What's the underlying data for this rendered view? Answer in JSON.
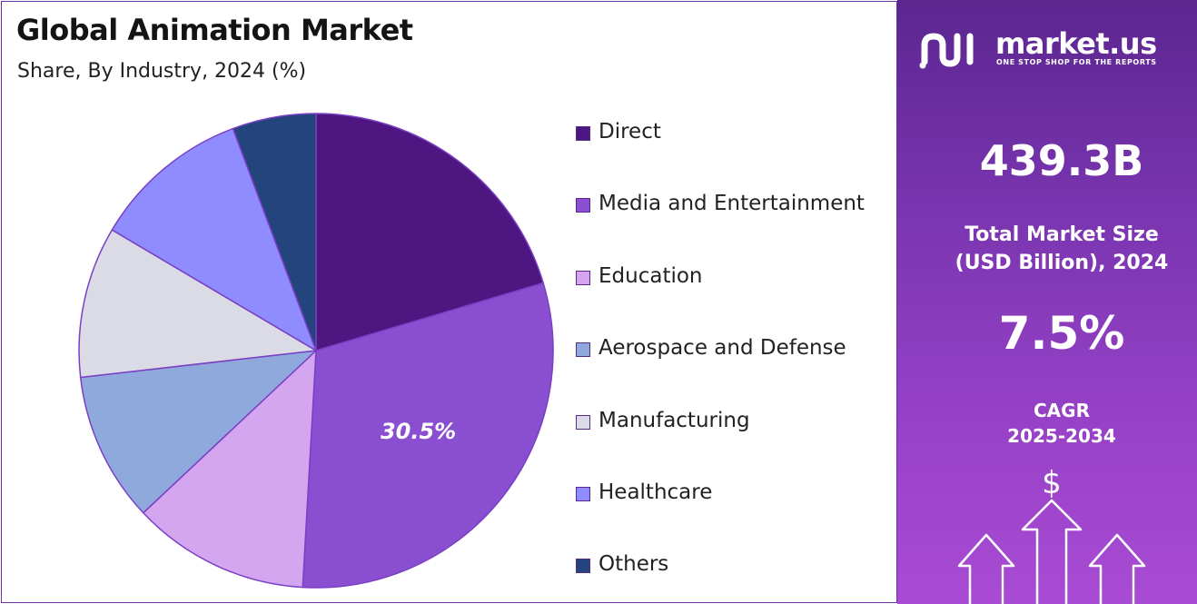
{
  "title": "Global Animation Market",
  "subtitle": "Share, By Industry, 2024 (%)",
  "chart_data": {
    "type": "pie",
    "categories": [
      "Direct",
      "Media and Entertainment",
      "Education",
      "Aerospace and Defense",
      "Manufacturing",
      "Healthcare",
      "Others"
    ],
    "values": [
      20.4,
      30.5,
      12.1,
      10.2,
      10.3,
      10.8,
      5.7
    ],
    "colors": [
      "#4d1680",
      "#8a4fd0",
      "#d3a6ef",
      "#8fa9dc",
      "#dadbe5",
      "#8e8cff",
      "#24447e"
    ],
    "data_labels": [
      {
        "category": "Media and Entertainment",
        "text": "30.5%"
      }
    ],
    "legend_position": "right",
    "start_angle_deg": 0,
    "direction": "clockwise"
  },
  "sidebar": {
    "brand_name": "market.us",
    "brand_tagline": "ONE STOP SHOP FOR THE REPORTS",
    "market_size_value": "439.3B",
    "market_size_label_line1": "Total Market Size",
    "market_size_label_line2": "(USD Billion), 2024",
    "cagr_value": "7.5%",
    "cagr_label_line1": "CAGR",
    "cagr_label_line2": "2025-2034",
    "dollar_symbol": "$",
    "icons": [
      "market-us-logo-icon",
      "dollar-icon",
      "up-arrow-icon"
    ]
  },
  "colors": {
    "panel_gradient_top": "#5b2690",
    "panel_gradient_bottom": "#a94bd4",
    "slice_border": "#7a3fc4"
  }
}
